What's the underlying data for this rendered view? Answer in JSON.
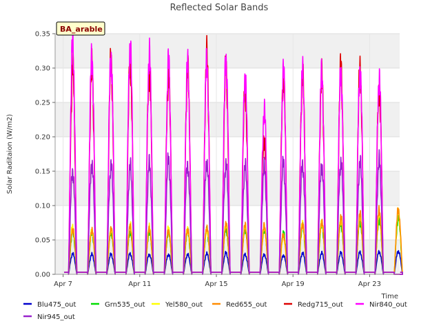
{
  "chart_data": {
    "type": "line",
    "title": "Reflected Solar Bands",
    "ylabel": "Solar Raditaion (W/m2)",
    "xlabel": "Time",
    "annotation": "BA_arable",
    "ylim": [
      0,
      0.35
    ],
    "xlim_days": [
      0,
      18
    ],
    "y_ticks": [
      "0.00",
      "0.05",
      "0.10",
      "0.15",
      "0.20",
      "0.25",
      "0.30",
      "0.35"
    ],
    "x_ticks": [
      {
        "label": "Apr 7",
        "day": 0
      },
      {
        "label": "Apr 11",
        "day": 4
      },
      {
        "label": "Apr 15",
        "day": 8
      },
      {
        "label": "Apr 19",
        "day": 12
      },
      {
        "label": "Apr 23",
        "day": 16
      }
    ],
    "days": [
      "Apr 7",
      "Apr 8",
      "Apr 9",
      "Apr 10",
      "Apr 11",
      "Apr 12",
      "Apr 13",
      "Apr 14",
      "Apr 15",
      "Apr 16",
      "Apr 17",
      "Apr 18",
      "Apr 19",
      "Apr 20",
      "Apr 21",
      "Apr 22",
      "Apr 23",
      "Apr 24"
    ],
    "grid": true,
    "legend_position": "bottom",
    "series": [
      {
        "name": "Blu475_out",
        "color": "#0000cc",
        "daily_peak": [
          0.03,
          0.029,
          0.029,
          0.03,
          0.029,
          0.029,
          0.029,
          0.03,
          0.031,
          0.029,
          0.029,
          0.028,
          0.031,
          0.031,
          0.031,
          0.032,
          0.033,
          0.034
        ]
      },
      {
        "name": "Grn535_out",
        "color": "#00dd00",
        "daily_peak": [
          0.062,
          0.061,
          0.061,
          0.062,
          0.062,
          0.062,
          0.063,
          0.064,
          0.066,
          0.066,
          0.066,
          0.06,
          0.07,
          0.072,
          0.074,
          0.077,
          0.08,
          0.082
        ]
      },
      {
        "name": "Yel580_out",
        "color": "#ffff00",
        "daily_peak": [
          0.07,
          0.065,
          0.066,
          0.072,
          0.068,
          0.066,
          0.066,
          0.066,
          0.074,
          0.07,
          0.068,
          0.055,
          0.074,
          0.076,
          0.08,
          0.084,
          0.088,
          0.09
        ]
      },
      {
        "name": "Red655_out",
        "color": "#ff8c00",
        "daily_peak": [
          0.066,
          0.064,
          0.065,
          0.068,
          0.066,
          0.064,
          0.066,
          0.068,
          0.072,
          0.07,
          0.07,
          0.058,
          0.074,
          0.077,
          0.082,
          0.086,
          0.092,
          0.094
        ]
      },
      {
        "name": "Redg715_out",
        "color": "#dd0000",
        "daily_peak": [
          0.3,
          0.3,
          0.31,
          0.31,
          0.295,
          0.29,
          0.298,
          0.316,
          0.3,
          0.27,
          0.2,
          0.288,
          0.29,
          0.286,
          0.3,
          0.3,
          0.27,
          0.0
        ]
      },
      {
        "name": "Nir840_out",
        "color": "#ff00ff",
        "daily_peak": [
          0.335,
          0.318,
          0.318,
          0.335,
          0.32,
          0.307,
          0.303,
          0.31,
          0.315,
          0.29,
          0.24,
          0.293,
          0.292,
          0.292,
          0.296,
          0.298,
          0.286,
          0.0
        ]
      },
      {
        "name": "Nir945_out",
        "color": "#9922cc",
        "daily_peak": [
          0.15,
          0.162,
          0.16,
          0.157,
          0.16,
          0.167,
          0.16,
          0.165,
          0.162,
          0.157,
          0.155,
          0.162,
          0.16,
          0.16,
          0.165,
          0.163,
          0.165,
          0.0
        ]
      }
    ]
  }
}
